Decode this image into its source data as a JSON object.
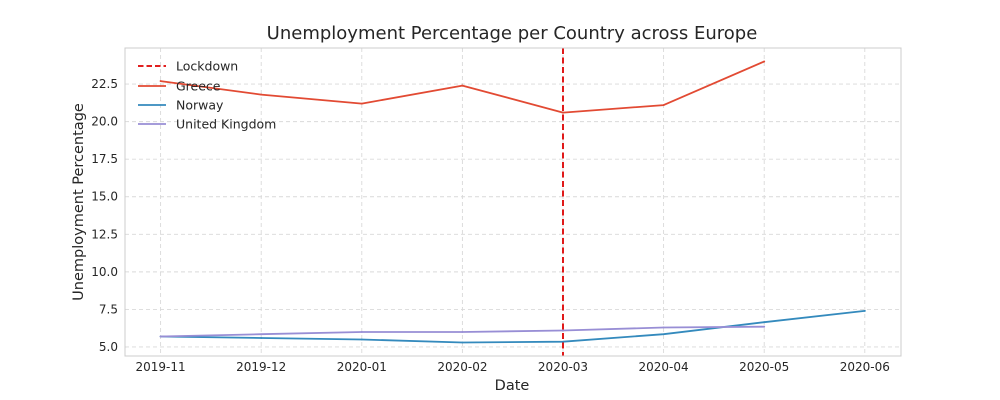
{
  "chart_data": {
    "type": "line",
    "title": "Unemployment Percentage per Country across Europe",
    "xlabel": "Date",
    "ylabel": "Unemployment Percentage",
    "categories": [
      "2019-11",
      "2019-12",
      "2020-01",
      "2020-02",
      "2020-03",
      "2020-04",
      "2020-05",
      "2020-06"
    ],
    "y_ticks": [
      "5.0",
      "7.5",
      "10.0",
      "12.5",
      "15.0",
      "17.5",
      "20.0",
      "22.5"
    ],
    "ylim": [
      4.4,
      24.9
    ],
    "grid": true,
    "legend_position": "upper-left",
    "lockdown": {
      "name": "Lockdown",
      "x": "2020-03",
      "color": "#dd0000"
    },
    "series": [
      {
        "name": "Greece",
        "color": "#e24a33",
        "values": [
          22.7,
          21.8,
          21.2,
          22.4,
          20.6,
          21.1,
          24.0,
          null
        ]
      },
      {
        "name": "Norway",
        "color": "#348abd",
        "values": [
          5.7,
          5.6,
          5.5,
          5.3,
          5.35,
          5.85,
          6.65,
          7.4
        ]
      },
      {
        "name": "United Kingdom",
        "color": "#988ed5",
        "values": [
          5.7,
          5.85,
          6.0,
          6.0,
          6.1,
          6.3,
          6.35,
          null
        ]
      }
    ]
  }
}
